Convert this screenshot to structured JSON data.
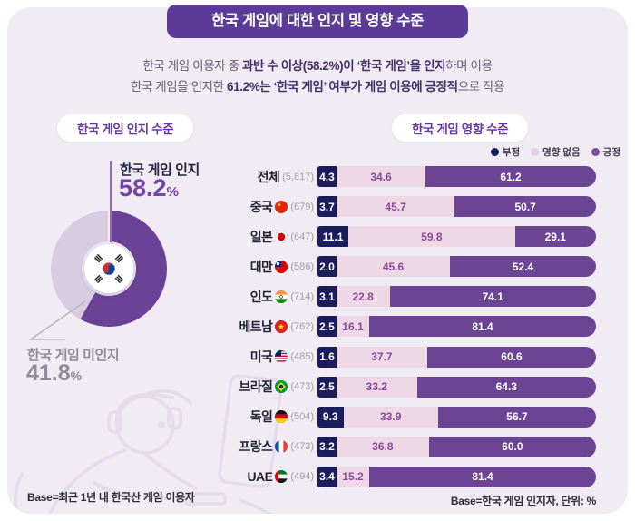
{
  "header": {
    "title": "한국 게임에 대한 인지 및 영향 수준"
  },
  "subtitle": {
    "line1": [
      {
        "text": "한국 게임 이용자 중 ",
        "bold": false
      },
      {
        "text": "과반 수 이상(58.2%)이 ‘한국 게임’을 인지",
        "bold": true
      },
      {
        "text": "하며 이용",
        "bold": false
      }
    ],
    "line2": [
      {
        "text": "한국 게임을 인지한 ",
        "bold": false
      },
      {
        "text": "61.2%는 ‘한국 게임’ 여부가 게임 이용에 긍정적",
        "bold": true
      },
      {
        "text": "으로 작용",
        "bold": false
      }
    ]
  },
  "awareness": {
    "section_label": "한국 게임 인지 수준",
    "aware_label": "한국 게임 인지",
    "aware_value": "58.2",
    "unaware_label": "한국 게임 미인지",
    "unaware_value": "41.8",
    "unit": "%",
    "base_note": "Base=최근 1년 내 한국산 게임 이용자",
    "center_icon": "korea-flag-icon"
  },
  "influence": {
    "section_label": "한국 게임 영향 수준",
    "legend": [
      {
        "label": "부정",
        "color": "#1b1c5c"
      },
      {
        "label": "영향 없음",
        "color": "#ddd0e2"
      },
      {
        "label": "긍정",
        "color": "#7a4fa0"
      }
    ],
    "rows": [
      {
        "name": "전체",
        "flag": null,
        "count": "(5,817)",
        "neg": 4.3,
        "none": 34.6,
        "pos": 61.2
      },
      {
        "name": "중국",
        "flag": "china",
        "count": "(679)",
        "neg": 3.7,
        "none": 45.7,
        "pos": 50.7
      },
      {
        "name": "일본",
        "flag": "japan",
        "count": "(647)",
        "neg": 11.1,
        "none": 59.8,
        "pos": 29.1
      },
      {
        "name": "대만",
        "flag": "taiwan",
        "count": "(586)",
        "neg": 2.0,
        "none": 45.6,
        "pos": 52.4
      },
      {
        "name": "인도",
        "flag": "india",
        "count": "(714)",
        "neg": 3.1,
        "none": 22.8,
        "pos": 74.1
      },
      {
        "name": "베트남",
        "flag": "vietnam",
        "count": "(762)",
        "neg": 2.5,
        "none": 16.1,
        "pos": 81.4
      },
      {
        "name": "미국",
        "flag": "usa",
        "count": "(485)",
        "neg": 1.6,
        "none": 37.7,
        "pos": 60.6
      },
      {
        "name": "브라질",
        "flag": "brazil",
        "count": "(473)",
        "neg": 2.5,
        "none": 33.2,
        "pos": 64.3
      },
      {
        "name": "독일",
        "flag": "germany",
        "count": "(504)",
        "neg": 9.3,
        "none": 33.9,
        "pos": 56.7
      },
      {
        "name": "프랑스",
        "flag": "france",
        "count": "(473)",
        "neg": 3.2,
        "none": 36.8,
        "pos": 60.0
      },
      {
        "name": "UAE",
        "flag": "uae",
        "count": "(494)",
        "neg": 3.4,
        "none": 15.2,
        "pos": 81.4
      }
    ],
    "base_note": "Base=한국 게임 인지자, 단위: %"
  },
  "colors": {
    "panel_bg": "#f1ebf3",
    "banner_bg": "#5b3b97",
    "negative": "#1b1c5c",
    "no_influence": "#eed8e6",
    "positive": "#6c4494",
    "donut_aware": "#6a4296",
    "donut_unaware": "#d8cce0",
    "aware_value_text": "#7343a5",
    "unaware_text": "#8f8b99"
  },
  "chart_data": [
    {
      "type": "pie",
      "title": "한국 게임 인지 수준",
      "labels": [
        "한국 게임 인지",
        "한국 게임 미인지"
      ],
      "values": [
        58.2,
        41.8
      ],
      "unit": "%",
      "donut": true
    },
    {
      "type": "bar",
      "title": "한국 게임 영향 수준",
      "stacked": true,
      "orientation": "horizontal",
      "categories": [
        "전체",
        "중국",
        "일본",
        "대만",
        "인도",
        "베트남",
        "미국",
        "브라질",
        "독일",
        "프랑스",
        "UAE"
      ],
      "category_bases": [
        5817,
        679,
        647,
        586,
        714,
        762,
        485,
        473,
        504,
        473,
        494
      ],
      "series": [
        {
          "name": "부정",
          "values": [
            4.3,
            3.7,
            11.1,
            2.0,
            3.1,
            2.5,
            1.6,
            2.5,
            9.3,
            3.2,
            3.4
          ]
        },
        {
          "name": "영향 없음",
          "values": [
            34.6,
            45.7,
            59.8,
            45.6,
            22.8,
            16.1,
            37.7,
            33.2,
            33.9,
            36.8,
            15.2
          ]
        },
        {
          "name": "긍정",
          "values": [
            61.2,
            50.7,
            29.1,
            52.4,
            74.1,
            81.4,
            60.6,
            64.3,
            56.7,
            60.0,
            81.4
          ]
        }
      ],
      "unit": "%",
      "xlim": [
        0,
        100
      ],
      "legend_position": "top-right"
    }
  ]
}
